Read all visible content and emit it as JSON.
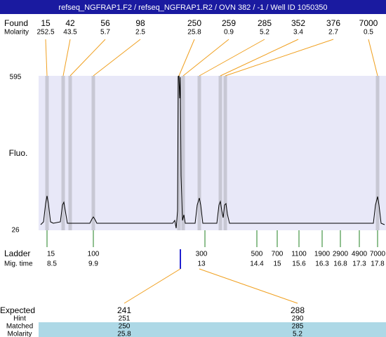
{
  "header": {
    "title": "refseq_NGFRAP1.F2 / refseq_NGFRAP1.R2 / OVN 382 / -1 / Well ID 1050350"
  },
  "found": {
    "label": "Found",
    "molarity_label": "Molarity",
    "sizes": [
      15,
      42,
      56,
      98,
      250,
      259,
      285,
      352,
      376,
      7000
    ],
    "molarity": [
      252.5,
      43.5,
      5.7,
      2.5,
      25.8,
      0.9,
      5.2,
      3.4,
      2.7,
      0.5
    ]
  },
  "plot": {
    "ylabel": "Fluo.",
    "ymax": 595,
    "ymin": 26
  },
  "ladder": {
    "label": "Ladder",
    "time_label": "Mig. time",
    "sizes": [
      15,
      100,
      300,
      500,
      700,
      1100,
      1900,
      2900,
      4900,
      7000
    ],
    "times": [
      8.5,
      9.9,
      13,
      14.4,
      15,
      15.6,
      16.3,
      16.8,
      17.3,
      17.8
    ]
  },
  "expected": {
    "labels": [
      "Expected",
      "Hint",
      "Matched",
      "Molarity"
    ],
    "columns": [
      [
        241,
        251,
        250,
        25.8
      ],
      [
        288,
        290,
        285,
        5.2
      ]
    ]
  }
}
